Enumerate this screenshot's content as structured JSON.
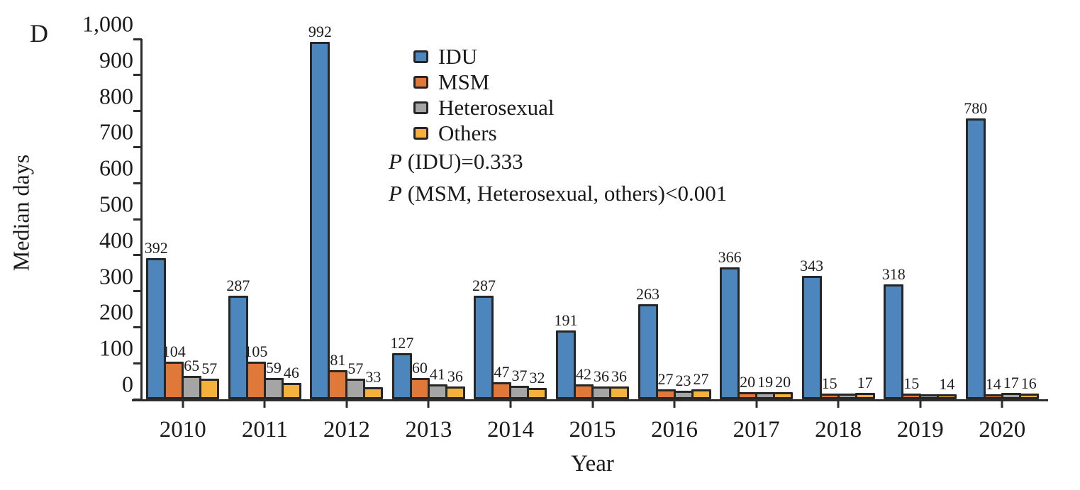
{
  "panel_label": "D",
  "chart_data": {
    "type": "bar",
    "title": "",
    "xlabel": "Year",
    "ylabel": "Median days",
    "ylim": [
      0,
      1000
    ],
    "ytick_step": 100,
    "ytick_labels": [
      "0",
      "100",
      "200",
      "300",
      "400",
      "500",
      "600",
      "700",
      "800",
      "900",
      "1,000"
    ],
    "grid": false,
    "legend_position": "top-center-inside",
    "bar_border_color": "#262626",
    "categories": [
      "2010",
      "2011",
      "2012",
      "2013",
      "2014",
      "2015",
      "2016",
      "2017",
      "2018",
      "2019",
      "2020"
    ],
    "series": [
      {
        "name": "IDU",
        "color": "#4D86BD",
        "values": [
          392,
          287,
          992,
          127,
          287,
          191,
          263,
          366,
          343,
          318,
          780
        ],
        "labels": [
          "392",
          "287",
          "992",
          "127",
          "287",
          "191",
          "263",
          "366",
          "343",
          "318",
          "780"
        ]
      },
      {
        "name": "MSM",
        "color": "#E07839",
        "values": [
          104,
          105,
          81,
          60,
          47,
          42,
          27,
          20,
          15,
          15,
          14
        ],
        "labels": [
          "104",
          "105",
          "81",
          "60",
          "47",
          "42",
          "27",
          "20",
          "15",
          "15",
          "14"
        ]
      },
      {
        "name": "Heterosexual",
        "color": "#A5A5A5",
        "values": [
          65,
          59,
          57,
          41,
          37,
          36,
          23,
          19,
          15,
          14,
          17
        ],
        "labels": [
          "65",
          "59",
          "57",
          "41",
          "37",
          "36",
          "23",
          "19",
          "",
          "",
          "17"
        ]
      },
      {
        "name": "Others",
        "color": "#F4B13B",
        "values": [
          57,
          46,
          33,
          36,
          32,
          36,
          27,
          20,
          17,
          14,
          16
        ],
        "labels": [
          "57",
          "46",
          "33",
          "36",
          "32",
          "36",
          "27",
          "20",
          "17",
          "14",
          "16"
        ]
      }
    ]
  },
  "annotations": {
    "p_symbol": "P",
    "p_line1_rest": " (IDU)=0.333",
    "p_line2_rest": " (MSM, Heterosexual, others)<0.001"
  }
}
